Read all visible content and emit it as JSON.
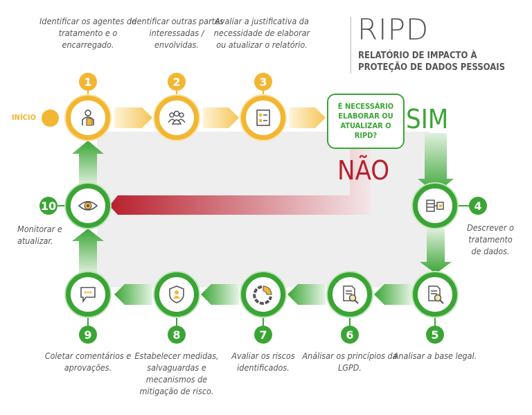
{
  "header": {
    "title": "RIPD",
    "subtitle_line1": "RELATÓRIO DE IMPACTO À",
    "subtitle_line2": "PROTEÇÃO DE DADOS PESSOAIS"
  },
  "start_label": "INÍCIO",
  "decision": {
    "text": "É NECESSÁRIO ELABORAR OU ATUALIZAR O RIPD?",
    "yes": "SIM",
    "no": "NÃO"
  },
  "colors": {
    "yellow": "#f2b632",
    "green": "#3aa535",
    "red": "#b8202e",
    "gray_text": "#555555"
  },
  "steps": [
    {
      "number": "1",
      "text": "Identificar os agentes de tratamento e o encarregado.",
      "icon": "person-document-icon"
    },
    {
      "number": "2",
      "text": "Identificar outras partes interessadas / envolvidas.",
      "icon": "group-icon"
    },
    {
      "number": "3",
      "text": "Avaliar a justificativa da necessidade de elaborar ou atualizar o relatório.",
      "icon": "checklist-icon"
    },
    {
      "number": "4",
      "text": "Descrever o tratamento de dados.",
      "icon": "data-flow-icon"
    },
    {
      "number": "5",
      "text": "Analisar a base legal.",
      "icon": "document-search-icon"
    },
    {
      "number": "6",
      "text": "Análisar os princípios da LGPD.",
      "icon": "document-search-icon"
    },
    {
      "number": "7",
      "text": "Avaliar os riscos identificados.",
      "icon": "pie-chart-icon"
    },
    {
      "number": "8",
      "text": "Estabelecer medidas, salvaguardas e mecanismos de mitigação de risco.",
      "icon": "shield-user-icon"
    },
    {
      "number": "9",
      "text": "Coletar comentários e aprovações.",
      "icon": "chat-bubble-icon"
    },
    {
      "number": "10",
      "text": "Monitorar e atualizar.",
      "icon": "eye-icon"
    }
  ]
}
